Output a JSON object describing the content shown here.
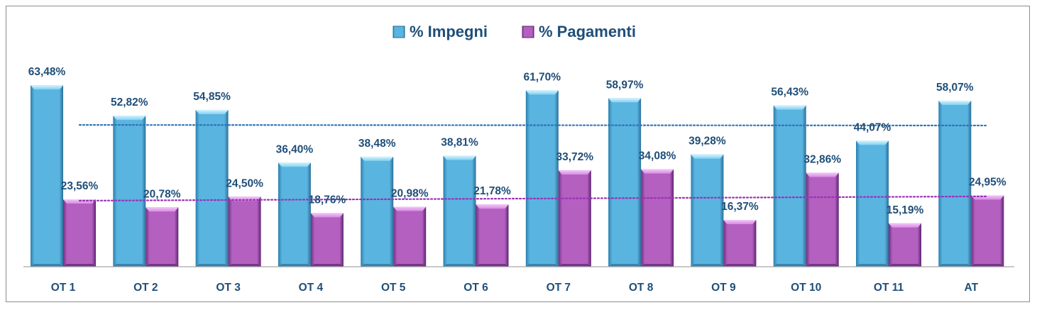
{
  "chart_data": {
    "type": "bar",
    "categories": [
      "OT 1",
      "OT 2",
      "OT 3",
      "OT 4",
      "OT 5",
      "OT 6",
      "OT 7",
      "OT 8",
      "OT 9",
      "OT 10",
      "OT 11",
      "AT"
    ],
    "series": [
      {
        "name": "% Impegni",
        "color": "#5ab4e0",
        "values": [
          63.48,
          52.82,
          54.85,
          36.4,
          38.48,
          38.81,
          61.7,
          58.97,
          39.28,
          56.43,
          44.07,
          58.07
        ],
        "labels": [
          "63,48%",
          "52,82%",
          "54,85%",
          "36,40%",
          "38,48%",
          "38,81%",
          "61,70%",
          "58,97%",
          "39,28%",
          "56,43%",
          "44,07%",
          "58,07%"
        ]
      },
      {
        "name": "% Pagamenti",
        "color": "#b460c0",
        "values": [
          23.56,
          20.78,
          24.5,
          18.76,
          20.98,
          21.78,
          33.72,
          34.08,
          16.37,
          32.86,
          15.19,
          24.95
        ],
        "labels": [
          "23,56%",
          "20,78%",
          "24,50%",
          "18,76%",
          "20,98%",
          "21,78%",
          "33,72%",
          "34,08%",
          "16,37%",
          "32,86%",
          "15,19%",
          "24,95%"
        ]
      }
    ],
    "trendlines": [
      {
        "series": "% Impegni",
        "style": "dotted",
        "color": "#2e75b6",
        "values": [
          49.6,
          49.4
        ]
      },
      {
        "series": "% Pagamenti",
        "style": "dotted",
        "color": "#9b30b8",
        "values": [
          23.1,
          24.6
        ]
      }
    ],
    "ylim": [
      0,
      66
    ],
    "grid": false,
    "legend_position": "top",
    "title": "",
    "xlabel": "",
    "ylabel": ""
  }
}
